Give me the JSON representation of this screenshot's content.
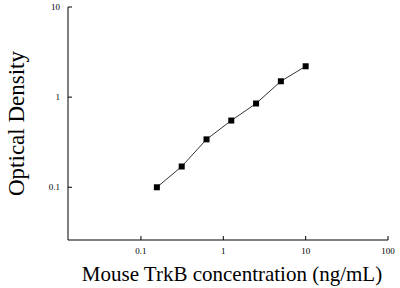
{
  "chart_data": {
    "type": "line",
    "marker": "square",
    "line_style": "solid",
    "color": "#000000",
    "log": true,
    "x_label": "Mouse TrkB concentration (ng/mL)",
    "y_label": "Optical Density",
    "x": [
      0.156,
      0.3125,
      0.625,
      1.25,
      2.5,
      5,
      10
    ],
    "values": [
      0.1,
      0.17,
      0.34,
      0.55,
      0.85,
      1.5,
      2.2
    ],
    "xlim": [
      0.013,
      100
    ],
    "xticks": [
      0.1,
      1,
      10,
      100
    ],
    "ylim": [
      0.026,
      10
    ],
    "yticks": [
      0.1,
      1,
      10
    ],
    "grid": false
  }
}
